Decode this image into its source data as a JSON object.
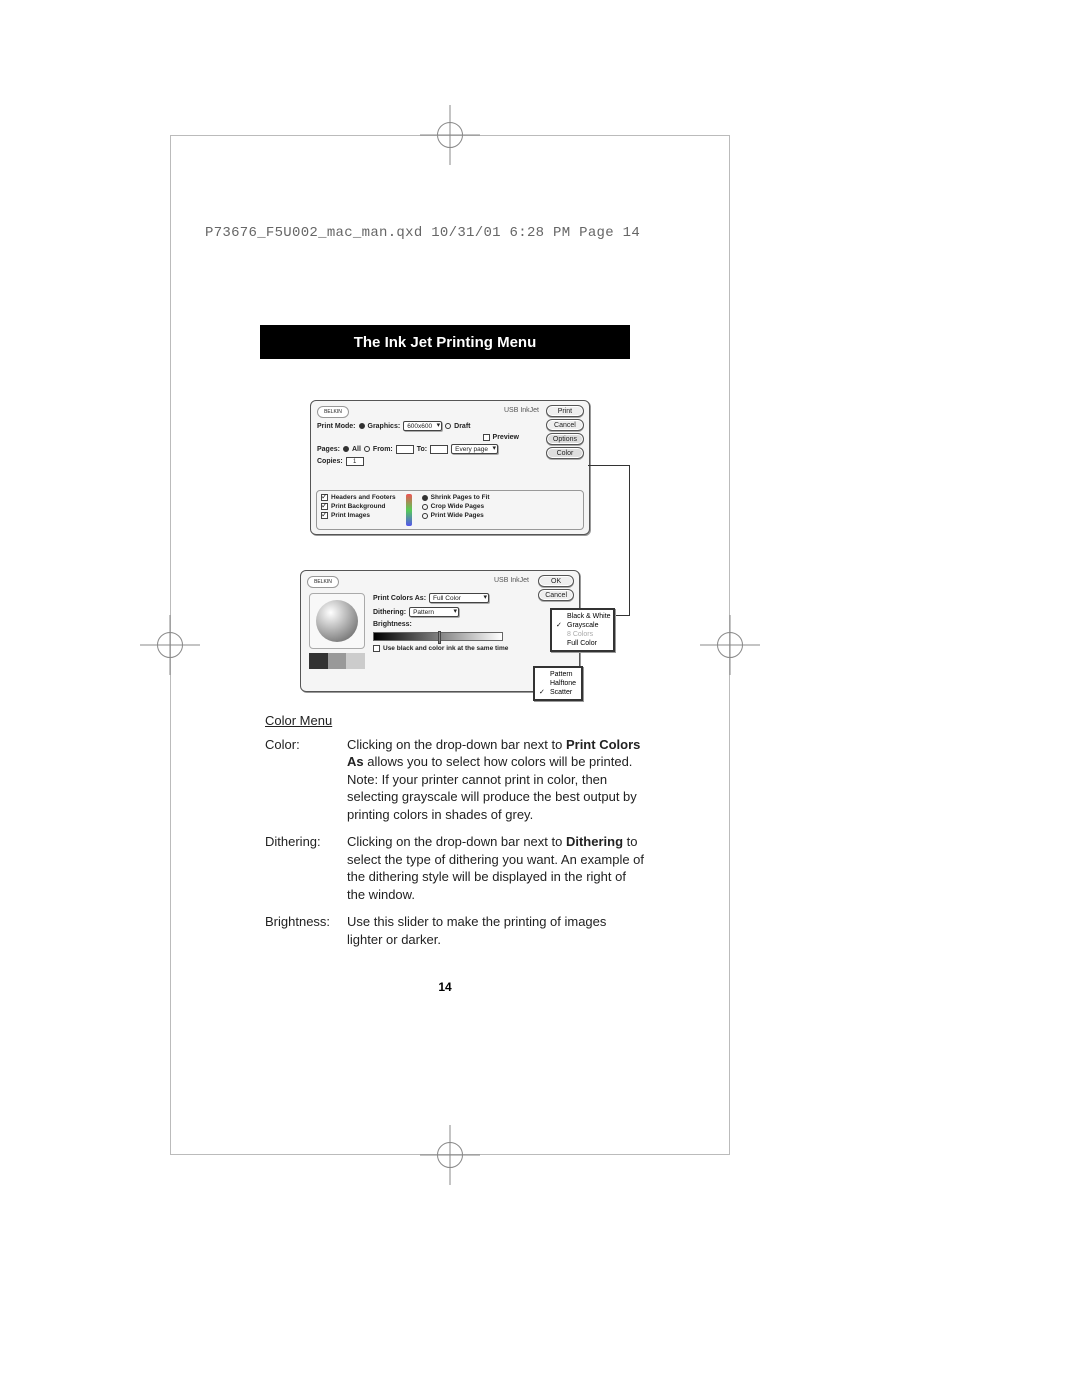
{
  "header": "P73676_F5U002_mac_man.qxd  10/31/01  6:28 PM  Page 14",
  "title": "The Ink Jet Printing Menu",
  "dialog1": {
    "logo": "BELKIN",
    "device": "USB InkJet",
    "buttons": {
      "print": "Print",
      "cancel": "Cancel",
      "options": "Options",
      "color": "Color"
    },
    "printMode": {
      "label": "Print Mode:",
      "graphics": "Graphics:",
      "resolution": "600x600",
      "draft": "Draft"
    },
    "preview": "Preview",
    "pages": {
      "label": "Pages:",
      "all": "All",
      "from": "From:",
      "to": "To:",
      "every": "Every page"
    },
    "copies": {
      "label": "Copies:",
      "value": "1"
    },
    "optsLeft": [
      "Headers and Footers",
      "Print Background",
      "Print Images"
    ],
    "optsRight": [
      "Shrink Pages to Fit",
      "Crop Wide Pages",
      "Print Wide Pages"
    ]
  },
  "dialog2": {
    "logo": "BELKIN",
    "device": "USB InkJet",
    "ok": "OK",
    "cancel": "Cancel",
    "printColorsAs": {
      "label": "Print Colors As:",
      "value": "Full Color"
    },
    "dithering": {
      "label": "Dithering:",
      "value": "Pattern"
    },
    "brightness": "Brightness:",
    "inkNote": "Use black and color ink at the same time"
  },
  "popupColors": {
    "items": [
      {
        "label": "Black & White",
        "checked": false
      },
      {
        "label": "Grayscale",
        "checked": true
      },
      {
        "label": "8 Colors",
        "checked": false,
        "dim": true
      },
      {
        "label": "Full Color",
        "checked": false
      }
    ]
  },
  "popupDither": {
    "items": [
      {
        "label": "Pattern",
        "checked": false
      },
      {
        "label": "Halftone",
        "checked": false
      },
      {
        "label": "Scatter",
        "checked": true
      }
    ]
  },
  "text": {
    "subhead": "Color Menu",
    "color": {
      "term": "Color:",
      "pre": "Clicking on the drop-down bar next to ",
      "bold": "Print Colors As",
      "post": " allows you to select how colors will be printed. Note: If your printer cannot print in color, then selecting grayscale will produce the best output by printing colors in shades of grey."
    },
    "dithering": {
      "term": "Dithering:",
      "pre": "Clicking on the drop-down bar next to ",
      "bold": "Dithering",
      "post": " to select the type of dithering you want. An example of the dithering style will be displayed in the right of the window."
    },
    "brightness": {
      "term": "Brightness:",
      "desc": "Use this slider to make the printing of images lighter or darker."
    }
  },
  "pageNumber": "14"
}
